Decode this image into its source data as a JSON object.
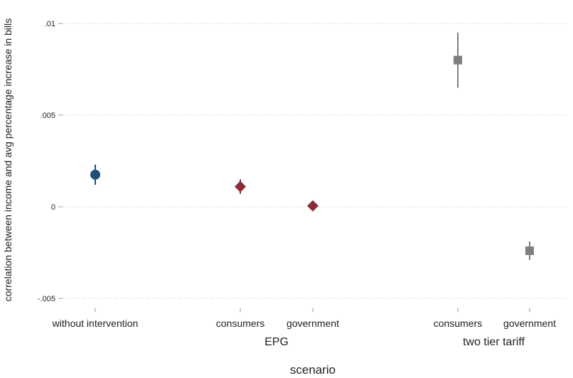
{
  "chart_data": {
    "type": "scatter",
    "title": "",
    "ylabel": "correlation between income and avg percentage increase in bills",
    "xlabel": "scenario",
    "ylim": [
      -0.0052,
      0.0106
    ],
    "yticks": [
      {
        "value": 0.01,
        "label": ".01"
      },
      {
        "value": 0.005,
        "label": ".005"
      },
      {
        "value": 0,
        "label": "0"
      },
      {
        "value": -0.005,
        "label": "-.005"
      }
    ],
    "grid": true,
    "groups": [
      {
        "label": "",
        "categories": [
          "without intervention"
        ]
      },
      {
        "label": "EPG",
        "categories": [
          "consumers",
          "government"
        ]
      },
      {
        "label": "two tier tariff",
        "categories": [
          "consumers",
          "government"
        ]
      }
    ],
    "points": [
      {
        "category": "without intervention",
        "group": "",
        "value": 0.00175,
        "ci": [
          0.0012,
          0.0023
        ],
        "marker": "circle",
        "color": "#1f4e79"
      },
      {
        "category": "consumers",
        "group": "EPG",
        "value": 0.0011,
        "ci": [
          0.0007,
          0.0015
        ],
        "marker": "diamond",
        "color": "#8b2e35"
      },
      {
        "category": "government",
        "group": "EPG",
        "value": 5e-05,
        "ci": [
          -0.0001,
          0.0002
        ],
        "marker": "diamond",
        "color": "#8b2e35"
      },
      {
        "category": "consumers",
        "group": "two tier tariff",
        "value": 0.008,
        "ci": [
          0.0065,
          0.0095
        ],
        "marker": "square",
        "color": "#7f7f7f"
      },
      {
        "category": "government",
        "group": "two tier tariff",
        "value": -0.0024,
        "ci": [
          -0.0029,
          -0.0019
        ],
        "marker": "square",
        "color": "#7f7f7f"
      }
    ]
  }
}
